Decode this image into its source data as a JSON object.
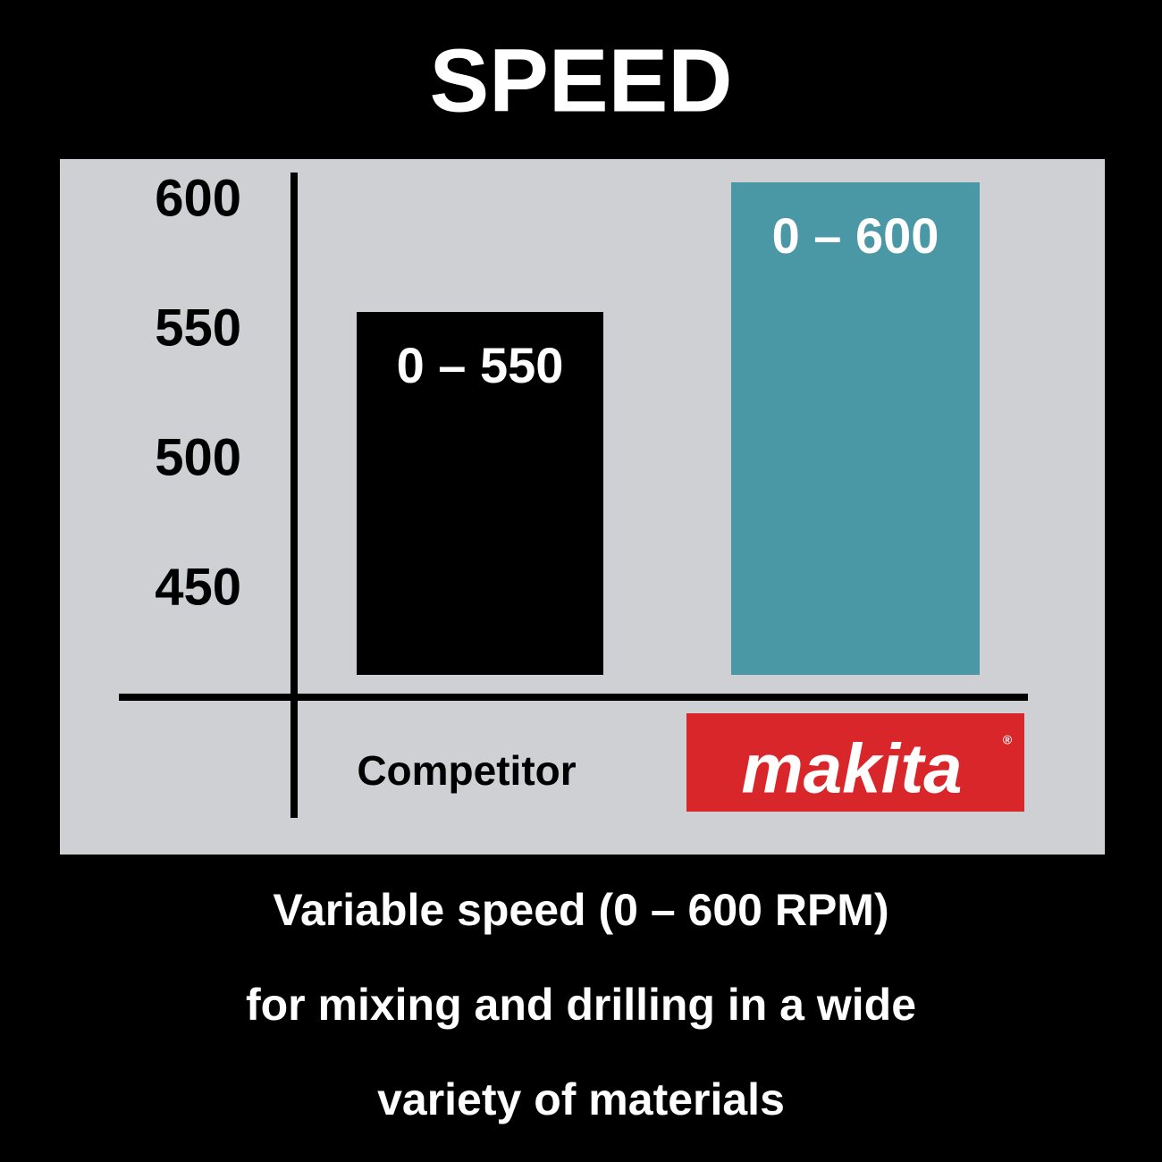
{
  "chart_data": {
    "type": "bar",
    "title": "SPEED",
    "categories": [
      "Competitor",
      "makita"
    ],
    "values": [
      550,
      600
    ],
    "value_labels": [
      "0 – 550",
      "0 – 600"
    ],
    "colors": [
      "#000000",
      "#4a97a5"
    ],
    "logo_mark": "®",
    "ylim": [
      410,
      610
    ],
    "yticks": [
      600,
      550,
      500,
      450
    ],
    "grid": false,
    "annotations": [
      "Variable speed (0 – 600 RPM)",
      "for mixing and drilling in a wide",
      "variety of materials"
    ]
  }
}
